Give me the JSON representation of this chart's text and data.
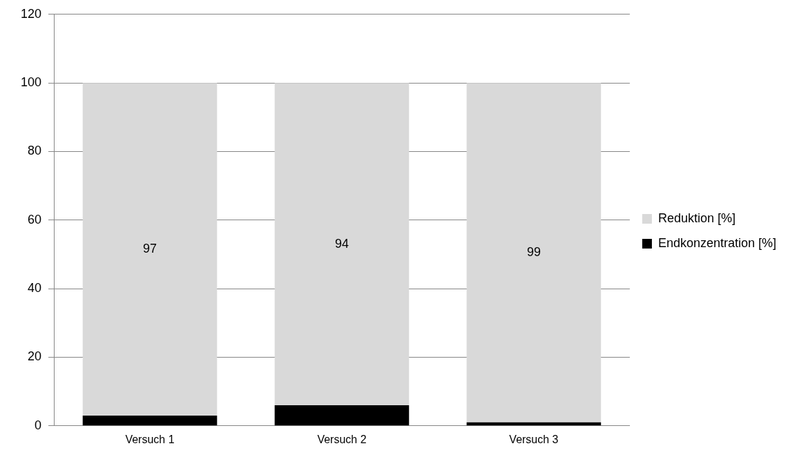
{
  "chart_data": {
    "type": "bar",
    "stacked": true,
    "categories": [
      "Versuch 1",
      "Versuch 2",
      "Versuch 3"
    ],
    "series": [
      {
        "name": "Endkonzentration [%]",
        "color": "#000000",
        "values": [
          3,
          6,
          1
        ]
      },
      {
        "name": "Reduktion [%]",
        "color": "#d9d9d9",
        "values": [
          97,
          94,
          99
        ],
        "value_labels": [
          "97",
          "94",
          "99"
        ]
      }
    ],
    "ylim": [
      0,
      120
    ],
    "yticks": [
      0,
      20,
      40,
      60,
      80,
      100,
      120
    ],
    "grid": "y",
    "legend": "right"
  }
}
